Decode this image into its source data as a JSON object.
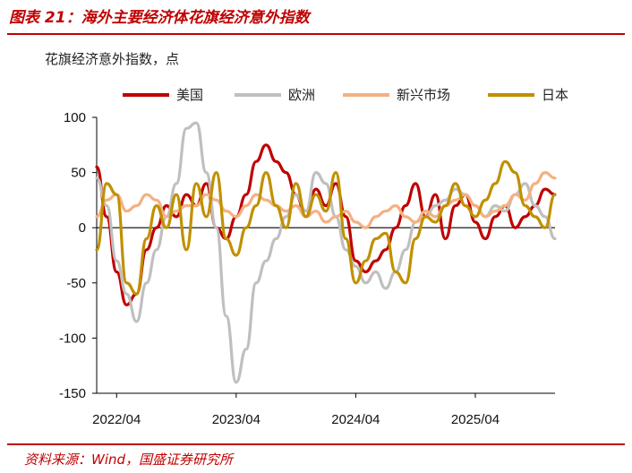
{
  "figure_title": "图表 21：海外主要经济体花旗经济意外指数",
  "source": "资料来源：Wind，国盛证券研究所",
  "chart_data": {
    "type": "line",
    "subtitle": "花旗经济意外指数，点",
    "xlabel": "",
    "ylabel": "",
    "ylim": [
      -150,
      100
    ],
    "yticks": [
      100,
      50,
      0,
      -50,
      -100,
      -150
    ],
    "x_range": [
      "2022-02",
      "2025-12"
    ],
    "x_tick_labels": [
      "2022/04",
      "2023/04",
      "2024/04",
      "2025/04"
    ],
    "x_tick_positions": [
      "2022-04",
      "2023-04",
      "2024-04",
      "2025-04"
    ],
    "grid": false,
    "legend_position": "top",
    "x": [
      "2022-02",
      "2022-03",
      "2022-04",
      "2022-05",
      "2022-06",
      "2022-07",
      "2022-08",
      "2022-09",
      "2022-10",
      "2022-11",
      "2022-12",
      "2023-01",
      "2023-02",
      "2023-03",
      "2023-04",
      "2023-05",
      "2023-06",
      "2023-07",
      "2023-08",
      "2023-09",
      "2023-10",
      "2023-11",
      "2023-12",
      "2024-01",
      "2024-02",
      "2024-03",
      "2024-04",
      "2024-05",
      "2024-06",
      "2024-07",
      "2024-08",
      "2024-09",
      "2024-10",
      "2024-11",
      "2024-12",
      "2025-01",
      "2025-02",
      "2025-03",
      "2025-04",
      "2025-05",
      "2025-06",
      "2025-07",
      "2025-08",
      "2025-09",
      "2025-10",
      "2025-11",
      "2025-12"
    ],
    "series": [
      {
        "name": "美国",
        "color": "#c00000",
        "width": 3.2,
        "values": [
          55,
          10,
          -40,
          -70,
          -60,
          -20,
          0,
          20,
          10,
          30,
          20,
          40,
          0,
          -10,
          10,
          30,
          60,
          75,
          60,
          50,
          30,
          10,
          35,
          20,
          40,
          10,
          -30,
          -40,
          -30,
          -20,
          0,
          20,
          40,
          10,
          30,
          -10,
          20,
          30,
          5,
          -10,
          10,
          20,
          0,
          10,
          20,
          35,
          30
        ]
      },
      {
        "name": "欧洲",
        "color": "#bfbfbf",
        "width": 3.2,
        "values": [
          45,
          20,
          -30,
          -60,
          -85,
          -50,
          -20,
          10,
          40,
          90,
          95,
          50,
          0,
          -80,
          -140,
          -110,
          -50,
          -30,
          -10,
          10,
          30,
          15,
          50,
          40,
          10,
          -20,
          -35,
          -50,
          -40,
          -55,
          -40,
          -20,
          5,
          10,
          20,
          25,
          35,
          30,
          20,
          10,
          20,
          15,
          30,
          40,
          20,
          10,
          -10
        ]
      },
      {
        "name": "新兴市场",
        "color": "#f4b183",
        "width": 3.2,
        "values": [
          10,
          25,
          30,
          15,
          20,
          30,
          25,
          10,
          15,
          20,
          20,
          30,
          25,
          15,
          10,
          20,
          30,
          25,
          20,
          15,
          20,
          10,
          15,
          5,
          10,
          15,
          5,
          0,
          10,
          15,
          20,
          10,
          5,
          15,
          10,
          20,
          25,
          30,
          20,
          10,
          15,
          20,
          30,
          25,
          40,
          50,
          45
        ]
      },
      {
        "name": "日本",
        "color": "#c09000",
        "width": 3.2,
        "values": [
          -20,
          40,
          30,
          -50,
          -60,
          -10,
          20,
          0,
          30,
          -20,
          40,
          10,
          50,
          -10,
          -25,
          0,
          20,
          50,
          20,
          0,
          40,
          10,
          30,
          15,
          50,
          -10,
          -50,
          -30,
          -10,
          -5,
          -40,
          -50,
          -10,
          10,
          5,
          20,
          40,
          20,
          10,
          25,
          40,
          60,
          50,
          20,
          10,
          0,
          30
        ]
      }
    ]
  }
}
